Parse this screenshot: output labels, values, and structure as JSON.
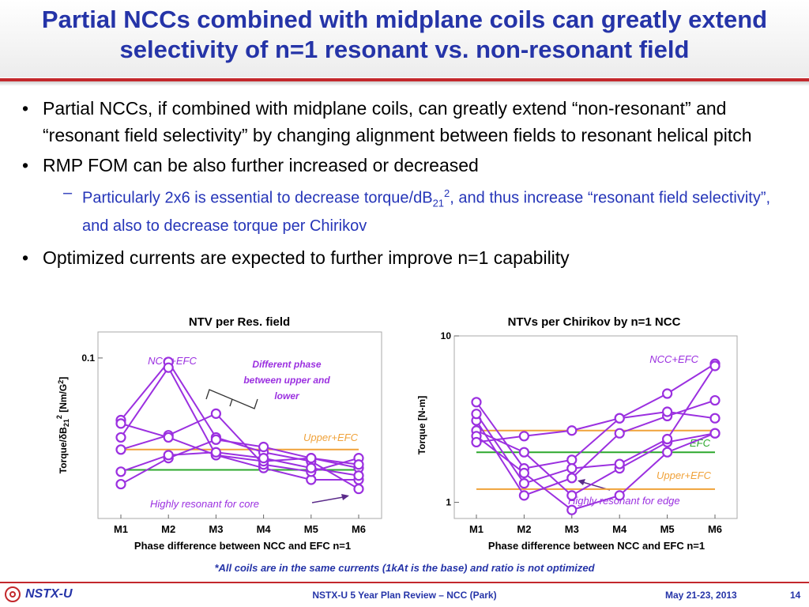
{
  "slide": {
    "title": "Partial NCCs combined with midplane coils can greatly extend selectivity of n=1 resonant vs. non-resonant field",
    "bullets": {
      "b1": "Partial NCCs, if combined with midplane coils, can greatly extend “non-resonant” and “resonant field selectivity” by changing alignment between fields to resonant helical pitch",
      "b2": "RMP FOM can be also further increased or decreased",
      "b2_sub_pre": "Particularly 2x6 is essential to decrease torque/dB",
      "b2_sub_sub": "21",
      "b2_sub_sup": "2",
      "b2_sub_post": ", and thus increase “resonant field selectivity”, and also to decrease torque per Chirikov",
      "b3": "Optimized currents are expected to further improve n=1 capability"
    },
    "footnote": "*All coils are in the same currents (1kAt is the base) and ratio is not optimized",
    "footer": {
      "logo_text": "NSTX-U",
      "center": "NSTX-U 5 Year Plan Review – NCC (Park)",
      "date": "May 21-23, 2013",
      "page": "14"
    },
    "colors": {
      "title": "#2534a8",
      "accent_red": "#c3282c",
      "series_purple": "#9b30e0",
      "efc_green": "#2da82d",
      "upper_orange": "#f0a23a",
      "sub_bullet_blue": "#2535b8"
    }
  },
  "chart_data": [
    {
      "type": "line",
      "title": "NTV per Res. field",
      "xlabel": "Phase difference between NCC and EFC n=1",
      "ylabel": "Torque/δB21² [Nm/G²]",
      "x": [
        "M1",
        "M2",
        "M3",
        "M4",
        "M5",
        "M6"
      ],
      "ylog": true,
      "ylim": [
        0.0082,
        0.15
      ],
      "ytick_labels": [
        "0.1"
      ],
      "ytick_values": [
        0.1
      ],
      "series": [
        {
          "values": [
            0.038,
            0.094,
            0.029,
            0.023,
            0.02,
            0.013
          ]
        },
        {
          "values": [
            0.029,
            0.086,
            0.022,
            0.018,
            0.015,
            0.015
          ]
        },
        {
          "values": [
            0.024,
            0.03,
            0.042,
            0.019,
            0.017,
            0.021
          ]
        },
        {
          "values": [
            0.014,
            0.021,
            0.028,
            0.025,
            0.021,
            0.018
          ]
        },
        {
          "values": [
            0.036,
            0.029,
            0.022,
            0.02,
            0.021,
            0.019
          ]
        },
        {
          "values": [
            0.017,
            0.022,
            0.023,
            0.021,
            0.018,
            0.016
          ]
        }
      ],
      "reference_lines": [
        {
          "label": "Upper+EFC",
          "value": 0.024
        },
        {
          "value": 0.0175
        }
      ],
      "annotations": [
        "NCC+EFC",
        "Different phase between upper and lower",
        "Upper+EFC",
        "Highly resonant for core"
      ]
    },
    {
      "type": "line",
      "title": "NTVs per Chirikov by n=1 NCC",
      "xlabel": "Phase difference between NCC and EFC n=1",
      "ylabel": "Torque [N-m]",
      "x": [
        "M1",
        "M2",
        "M3",
        "M4",
        "M5",
        "M6"
      ],
      "ylog": true,
      "ylim": [
        0.8,
        10
      ],
      "ytick_labels": [
        "1",
        "10"
      ],
      "ytick_values": [
        1,
        10
      ],
      "series": [
        {
          "values": [
            4.0,
            1.6,
            1.8,
            3.2,
            4.5,
            6.8
          ]
        },
        {
          "values": [
            3.1,
            1.1,
            1.4,
            2.6,
            3.3,
            4.1
          ]
        },
        {
          "values": [
            2.7,
            2.0,
            1.1,
            1.6,
            2.3,
            2.6
          ]
        },
        {
          "values": [
            2.5,
            1.5,
            0.9,
            1.1,
            2.0,
            2.6
          ]
        },
        {
          "values": [
            2.3,
            2.5,
            2.7,
            3.2,
            3.5,
            3.2
          ]
        },
        {
          "values": [
            3.4,
            1.3,
            1.6,
            1.7,
            2.4,
            6.6
          ]
        }
      ],
      "reference_lines": [
        {
          "label": "EFC",
          "value": 2.0
        },
        {
          "label": "Upper+EFC",
          "value": 1.2
        },
        {
          "value": 2.7
        }
      ],
      "annotations": [
        "NCC+EFC",
        "EFC",
        "Upper+EFC",
        "Highly resonant for edge"
      ]
    }
  ]
}
